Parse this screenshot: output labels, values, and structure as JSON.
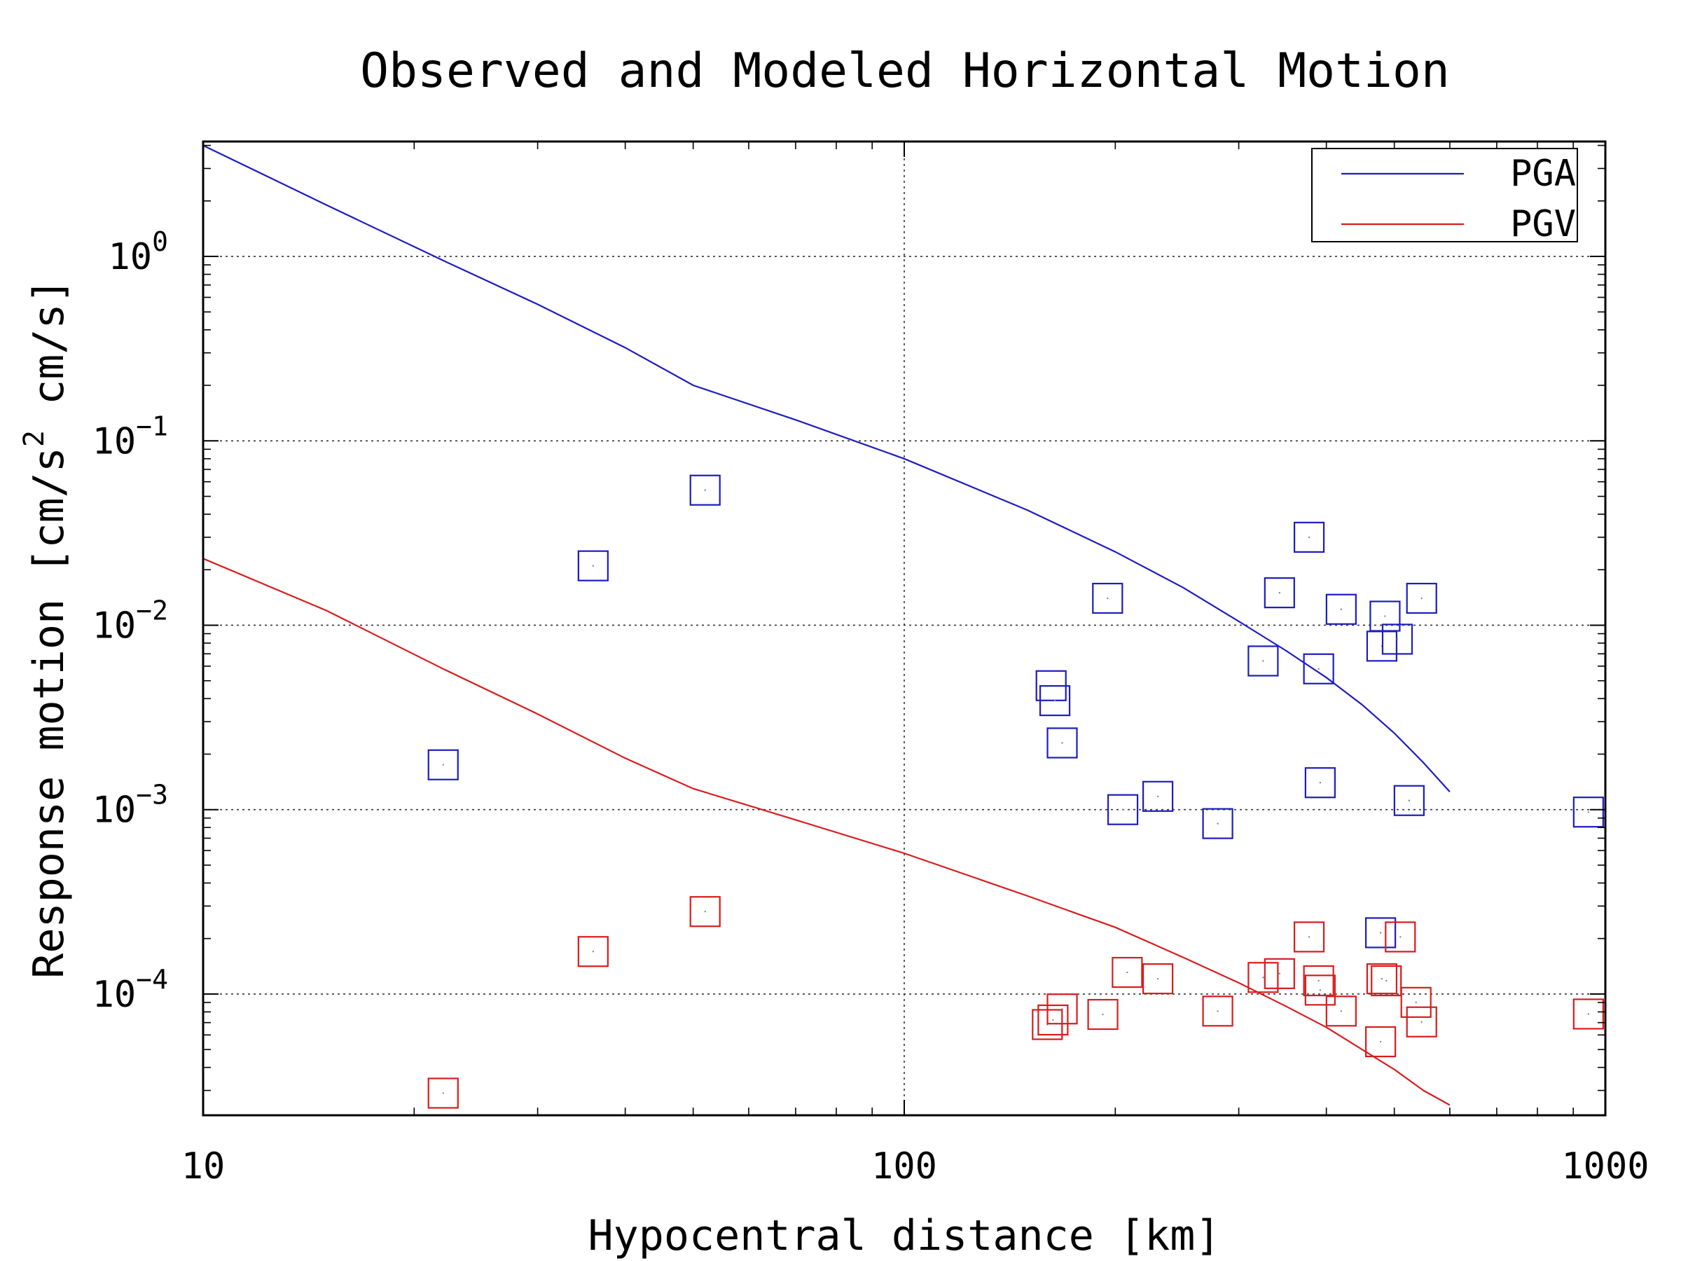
{
  "chart_data": {
    "type": "scatter",
    "title": "Observed and Modeled Horizontal Motion",
    "xlabel": "Hypocentral distance [km]",
    "ylabel_parts": {
      "before_exp": "Response motion  [cm/s",
      "exp": "2",
      "after_exp": "  cm/s]"
    },
    "x_scale": "log",
    "y_scale": "log",
    "xlim": [
      10,
      1000
    ],
    "ylim": [
      2.2e-05,
      4.2
    ],
    "grid": true,
    "legend_position": "top-right",
    "x_ticks": [
      {
        "value": 10,
        "label": "10"
      },
      {
        "value": 100,
        "label": "100"
      },
      {
        "value": 1000,
        "label": "1000"
      }
    ],
    "y_ticks": [
      {
        "value": 1,
        "base": "10",
        "exp": "0"
      },
      {
        "value": 0.1,
        "base": "10",
        "exp": "−1"
      },
      {
        "value": 0.01,
        "base": "10",
        "exp": "−2"
      },
      {
        "value": 0.001,
        "base": "10",
        "exp": "−3"
      },
      {
        "value": 0.0001,
        "base": "10",
        "exp": "−4"
      }
    ],
    "series": [
      {
        "name": "PGA",
        "color": "#1c1cc0",
        "line": {
          "x": [
            10,
            15,
            22,
            30,
            40,
            50,
            70,
            100,
            150,
            200,
            250,
            300,
            350,
            400,
            450,
            500,
            550,
            600
          ],
          "y": [
            4.0,
            1.9,
            0.95,
            0.55,
            0.32,
            0.2,
            0.13,
            0.08,
            0.042,
            0.025,
            0.016,
            0.0105,
            0.0073,
            0.0052,
            0.0037,
            0.0026,
            0.0018,
            0.00125
          ]
        },
        "observed": {
          "x": [
            22,
            36,
            52,
            162,
            164,
            168,
            195,
            205,
            230,
            280,
            325,
            343,
            378,
            390,
            392,
            420,
            478,
            480,
            485,
            505,
            525,
            547,
            946
          ],
          "y": [
            0.00175,
            0.021,
            0.054,
            0.0047,
            0.0039,
            0.0023,
            0.014,
            0.001,
            0.00118,
            0.00084,
            0.0064,
            0.015,
            0.03,
            0.0058,
            0.0014,
            0.0122,
            0.000215,
            0.0077,
            0.0112,
            0.0084,
            0.00112,
            0.014,
            0.00097
          ]
        }
      },
      {
        "name": "PGV",
        "color": "#d81c1c",
        "line": {
          "x": [
            10,
            15,
            22,
            30,
            40,
            50,
            70,
            100,
            150,
            200,
            250,
            300,
            350,
            400,
            450,
            500,
            550,
            600
          ],
          "y": [
            0.023,
            0.012,
            0.0058,
            0.0033,
            0.0019,
            0.0013,
            0.00088,
            0.00058,
            0.00034,
            0.00023,
            0.000158,
            0.000115,
            8.6e-05,
            6.6e-05,
            5e-05,
            3.9e-05,
            3e-05,
            2.5e-05
          ]
        },
        "observed": {
          "x": [
            22,
            36,
            52,
            160,
            163,
            168,
            192,
            208,
            230,
            280,
            325,
            343,
            378,
            390,
            392,
            420,
            478,
            480,
            487,
            510,
            537,
            547,
            946
          ],
          "y": [
            2.9e-05,
            0.00017,
            0.00028,
            6.83e-05,
            7.23e-05,
            8.3e-05,
            7.75e-05,
            0.000131,
            0.000121,
            8.08e-05,
            0.000123,
            0.000129,
            0.000204,
            0.000118,
            0.000105,
            8.08e-05,
            5.51e-05,
            0.000121,
            0.000118,
            0.000204,
            9.01e-05,
            7.06e-05,
            7.79e-05
          ]
        }
      }
    ]
  }
}
